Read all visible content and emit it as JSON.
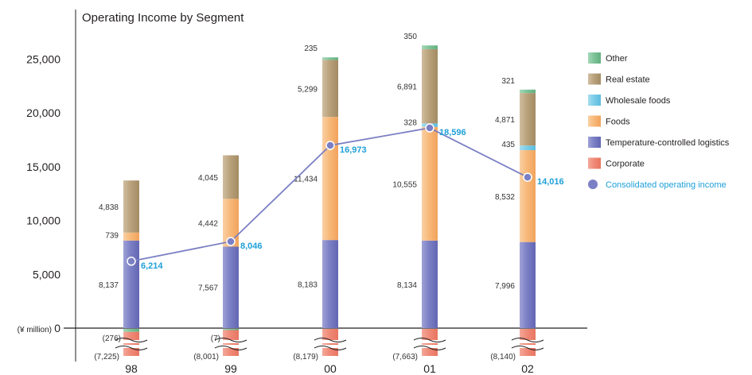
{
  "chart_data": {
    "type": "bar",
    "title": "Operating Income by Segment",
    "unit_label": "(¥ million)",
    "categories": [
      "98",
      "99",
      "00",
      "01",
      "02"
    ],
    "ylim": [
      0,
      25000
    ],
    "yticks": [
      "0",
      "5,000",
      "10,000",
      "15,000",
      "20,000",
      "25,000"
    ],
    "ytick_values": [
      0,
      5000,
      10000,
      15000,
      20000,
      25000
    ],
    "series": [
      {
        "name": "Corporate",
        "key": "corporate",
        "color": "#f08a78",
        "values": [
          -7225,
          -8001,
          -8179,
          -7663,
          -8140
        ],
        "labels": [
          "(7,225)",
          "(8,001)",
          "(8,179)",
          "(7,663)",
          "(8,140)"
        ]
      },
      {
        "name": "Temperature-controlled logistics",
        "key": "logistics",
        "color": "#7b7fc4",
        "values": [
          8137,
          7567,
          8183,
          8134,
          7996
        ],
        "labels": [
          "8,137",
          "7,567",
          "8,183",
          "8,134",
          "7,996"
        ]
      },
      {
        "name": "Foods",
        "key": "foods",
        "color": "#f7b97a",
        "values": [
          739,
          4442,
          11434,
          10555,
          8532
        ],
        "labels": [
          "739",
          "4,442",
          "11,434",
          "10,555",
          "8,532"
        ]
      },
      {
        "name": "Wholesale foods",
        "key": "wholesale",
        "color": "#7dcde8",
        "values": [
          null,
          null,
          null,
          328,
          435
        ],
        "labels": [
          "",
          "",
          "",
          "328",
          "435"
        ]
      },
      {
        "name": "Real estate",
        "key": "realestate",
        "color": "#b9a27c",
        "values": [
          4838,
          4045,
          5299,
          6891,
          4871
        ],
        "labels": [
          "4,838",
          "4,045",
          "5,299",
          "6,891",
          "4,871"
        ]
      },
      {
        "name": "Other",
        "key": "other",
        "color": "#7ec49a",
        "values": [
          -276,
          -7,
          235,
          350,
          321
        ],
        "labels": [
          "(276)",
          "(7)",
          "235",
          "350",
          "321"
        ]
      }
    ],
    "line": {
      "name": "Consolidated operating income",
      "color": "#7b7fc4",
      "values": [
        6214,
        8046,
        16973,
        18596,
        14016
      ],
      "labels": [
        "6,214",
        "8,046",
        "16,973",
        "18,596",
        "14,016"
      ]
    },
    "legend": {
      "position": "right",
      "items": [
        {
          "label": "Other",
          "color": "#7ec49a",
          "shape": "square"
        },
        {
          "label": "Real estate",
          "color": "#b9a27c",
          "shape": "square"
        },
        {
          "label": "Wholesale foods",
          "color": "#7dcde8",
          "shape": "square"
        },
        {
          "label": "Foods",
          "color": "#f7b97a",
          "shape": "square"
        },
        {
          "label": "Temperature-controlled logistics",
          "color": "#7b7fc4",
          "shape": "square"
        },
        {
          "label": "Corporate",
          "color": "#f08a78",
          "shape": "square"
        },
        {
          "label": "Consolidated operating income",
          "color": "#7b7fc4",
          "shape": "circle"
        }
      ]
    },
    "grid": false
  }
}
